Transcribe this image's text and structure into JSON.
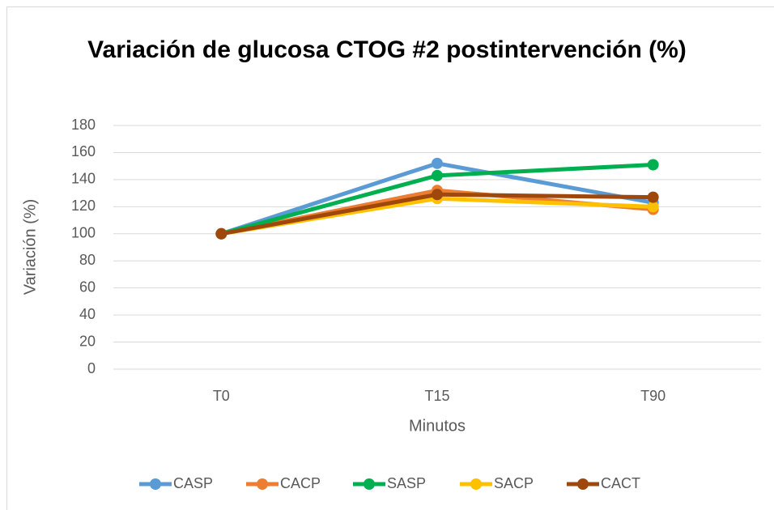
{
  "chart_data": {
    "type": "line",
    "title": "Variación de glucosa CTOG #2 postintervención (%)",
    "x_label": "Minutos",
    "y_label": "Variación (%)",
    "categories": [
      "T0",
      "T15",
      "T90"
    ],
    "series": [
      {
        "name": "CASP",
        "color": "#5b9bd5",
        "values": [
          100,
          152,
          123
        ]
      },
      {
        "name": "CACP",
        "color": "#ed7d31",
        "values": [
          100,
          132,
          118
        ]
      },
      {
        "name": "SASP",
        "color": "#00b050",
        "values": [
          100,
          143,
          151
        ]
      },
      {
        "name": "SACP",
        "color": "#ffc000",
        "values": [
          100,
          126,
          120
        ]
      },
      {
        "name": "CACT",
        "color": "#9e480e",
        "values": [
          100,
          129,
          127
        ]
      }
    ],
    "ylim": [
      0,
      180
    ],
    "yticks": [
      0,
      20,
      40,
      60,
      80,
      100,
      120,
      140,
      160,
      180
    ],
    "grid": true,
    "legend": "bottom"
  }
}
